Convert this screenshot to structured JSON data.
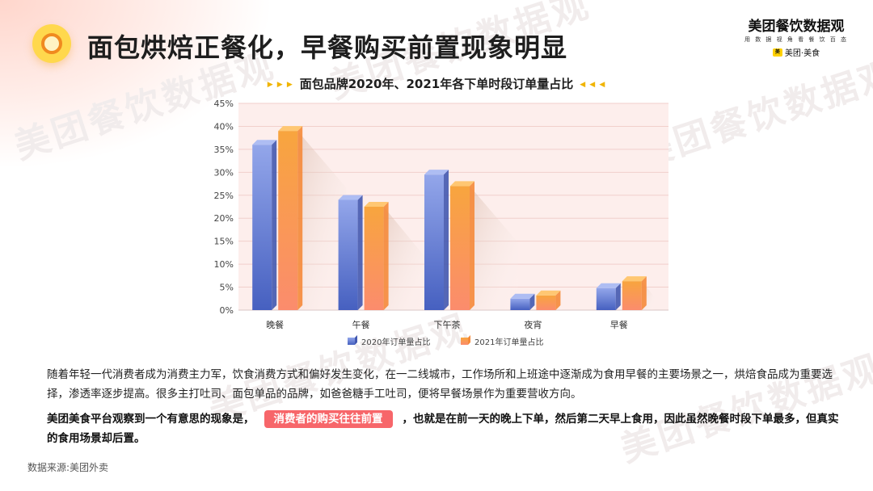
{
  "header": {
    "title": "面包烘焙正餐化，早餐购买前置现象明显",
    "icon": "target-pin-icon"
  },
  "brand": {
    "name": "美团餐饮数据观",
    "slogan": "用 数 据 视 角 看 餐 饮 百 态",
    "sub": "美团·美食"
  },
  "watermark": "美团餐饮数据观",
  "chart_data": {
    "type": "bar",
    "title": "面包品牌2020年、2021年各下单时段订单量占比",
    "categories": [
      "晚餐",
      "午餐",
      "下午茶",
      "夜宵",
      "早餐"
    ],
    "series": [
      {
        "name": "2020年订单量占比",
        "values": [
          36,
          24,
          29.5,
          2.5,
          4.8
        ],
        "color": "#6f86d9"
      },
      {
        "name": "2021年订单量占比",
        "values": [
          39,
          22.5,
          27,
          3.2,
          6.3
        ],
        "color": "#f9a44a"
      }
    ],
    "ylim": [
      0,
      45
    ],
    "yticks": [
      "0%",
      "5%",
      "10%",
      "15%",
      "20%",
      "25%",
      "30%",
      "35%",
      "40%",
      "45%"
    ],
    "grid": true,
    "legend": "bottom"
  },
  "body": {
    "paragraph1": "随着年轻一代消费者成为消费主力军，饮食消费方式和偏好发生变化，在一二线城市，工作场所和上班途中逐渐成为食用早餐的主要场景之一，烘焙食品成为重要选择，渗透率逐步提高。很多主打吐司、面包单品的品牌，如爸爸糖手工吐司，便将早餐场景作为重要营收方向。",
    "paragraph2_before": "美团美食平台观察到一个有意思的现象是，",
    "paragraph2_highlight": "消费者的购买往往前置",
    "paragraph2_after": "，也就是在前一天的晚上下单，然后第二天早上食用，因此虽然晚餐时段下单最多，但真实的食用场景却后置。"
  },
  "footer": {
    "source": "数据来源:美团外卖"
  }
}
